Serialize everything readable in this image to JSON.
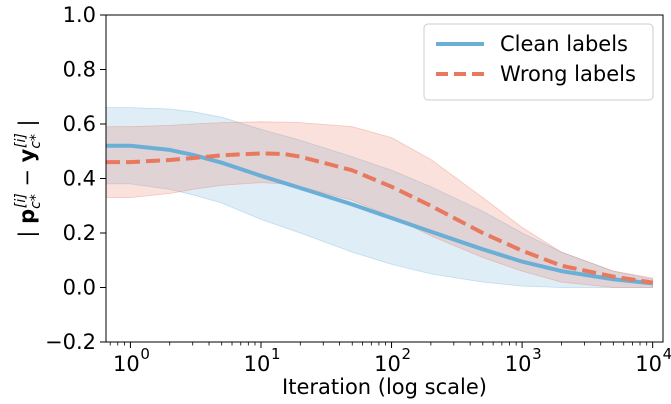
{
  "chart_data": {
    "type": "line",
    "xscale": "log",
    "xlabel": "Iteration (log scale)",
    "ylabel": "| p_{c*}^{[i]} − y_{c*}^{[i]} |",
    "xlim": [
      0.65,
      12000
    ],
    "ylim": [
      -0.2,
      1.0
    ],
    "grid": false,
    "legend_position": "top-right",
    "x_ticks": [
      {
        "value": 1,
        "label": "10",
        "exp": "0"
      },
      {
        "value": 10,
        "label": "10",
        "exp": "1"
      },
      {
        "value": 100,
        "label": "10",
        "exp": "2"
      },
      {
        "value": 1000,
        "label": "10",
        "exp": "3"
      },
      {
        "value": 10000,
        "label": "10",
        "exp": "4"
      }
    ],
    "y_ticks": [
      {
        "value": -0.2,
        "label": "−0.2"
      },
      {
        "value": 0.0,
        "label": "0.0"
      },
      {
        "value": 0.2,
        "label": "0.2"
      },
      {
        "value": 0.4,
        "label": "0.4"
      },
      {
        "value": 0.6,
        "label": "0.6"
      },
      {
        "value": 0.8,
        "label": "0.8"
      },
      {
        "value": 1.0,
        "label": "1.0"
      }
    ],
    "series": [
      {
        "name": "Clean labels",
        "color": "#6baed6",
        "linestyle": "solid",
        "x": [
          0.65,
          1,
          2,
          3,
          5,
          10,
          20,
          50,
          100,
          200,
          500,
          1000,
          2000,
          5000,
          10000
        ],
        "y": [
          0.52,
          0.52,
          0.505,
          0.487,
          0.458,
          0.41,
          0.365,
          0.305,
          0.255,
          0.205,
          0.14,
          0.095,
          0.06,
          0.03,
          0.015
        ],
        "y_lower": [
          0.38,
          0.38,
          0.36,
          0.34,
          0.31,
          0.25,
          0.2,
          0.13,
          0.085,
          0.05,
          0.02,
          0.005,
          0.0,
          0.0,
          0.0
        ],
        "y_upper": [
          0.66,
          0.66,
          0.655,
          0.645,
          0.625,
          0.58,
          0.54,
          0.48,
          0.43,
          0.37,
          0.28,
          0.2,
          0.13,
          0.06,
          0.03
        ]
      },
      {
        "name": "Wrong labels",
        "color": "#e8785e",
        "linestyle": "dashed",
        "x": [
          0.65,
          1,
          2,
          3,
          5,
          10,
          15,
          20,
          50,
          100,
          200,
          500,
          1000,
          2000,
          5000,
          10000
        ],
        "y": [
          0.46,
          0.46,
          0.468,
          0.475,
          0.485,
          0.492,
          0.49,
          0.48,
          0.43,
          0.37,
          0.3,
          0.2,
          0.135,
          0.08,
          0.04,
          0.018
        ],
        "y_lower": [
          0.33,
          0.33,
          0.345,
          0.36,
          0.375,
          0.385,
          0.38,
          0.37,
          0.32,
          0.26,
          0.19,
          0.11,
          0.06,
          0.02,
          0.0,
          0.0
        ],
        "y_upper": [
          0.59,
          0.59,
          0.595,
          0.6,
          0.605,
          0.608,
          0.607,
          0.605,
          0.59,
          0.55,
          0.47,
          0.33,
          0.22,
          0.13,
          0.06,
          0.035
        ]
      }
    ]
  }
}
